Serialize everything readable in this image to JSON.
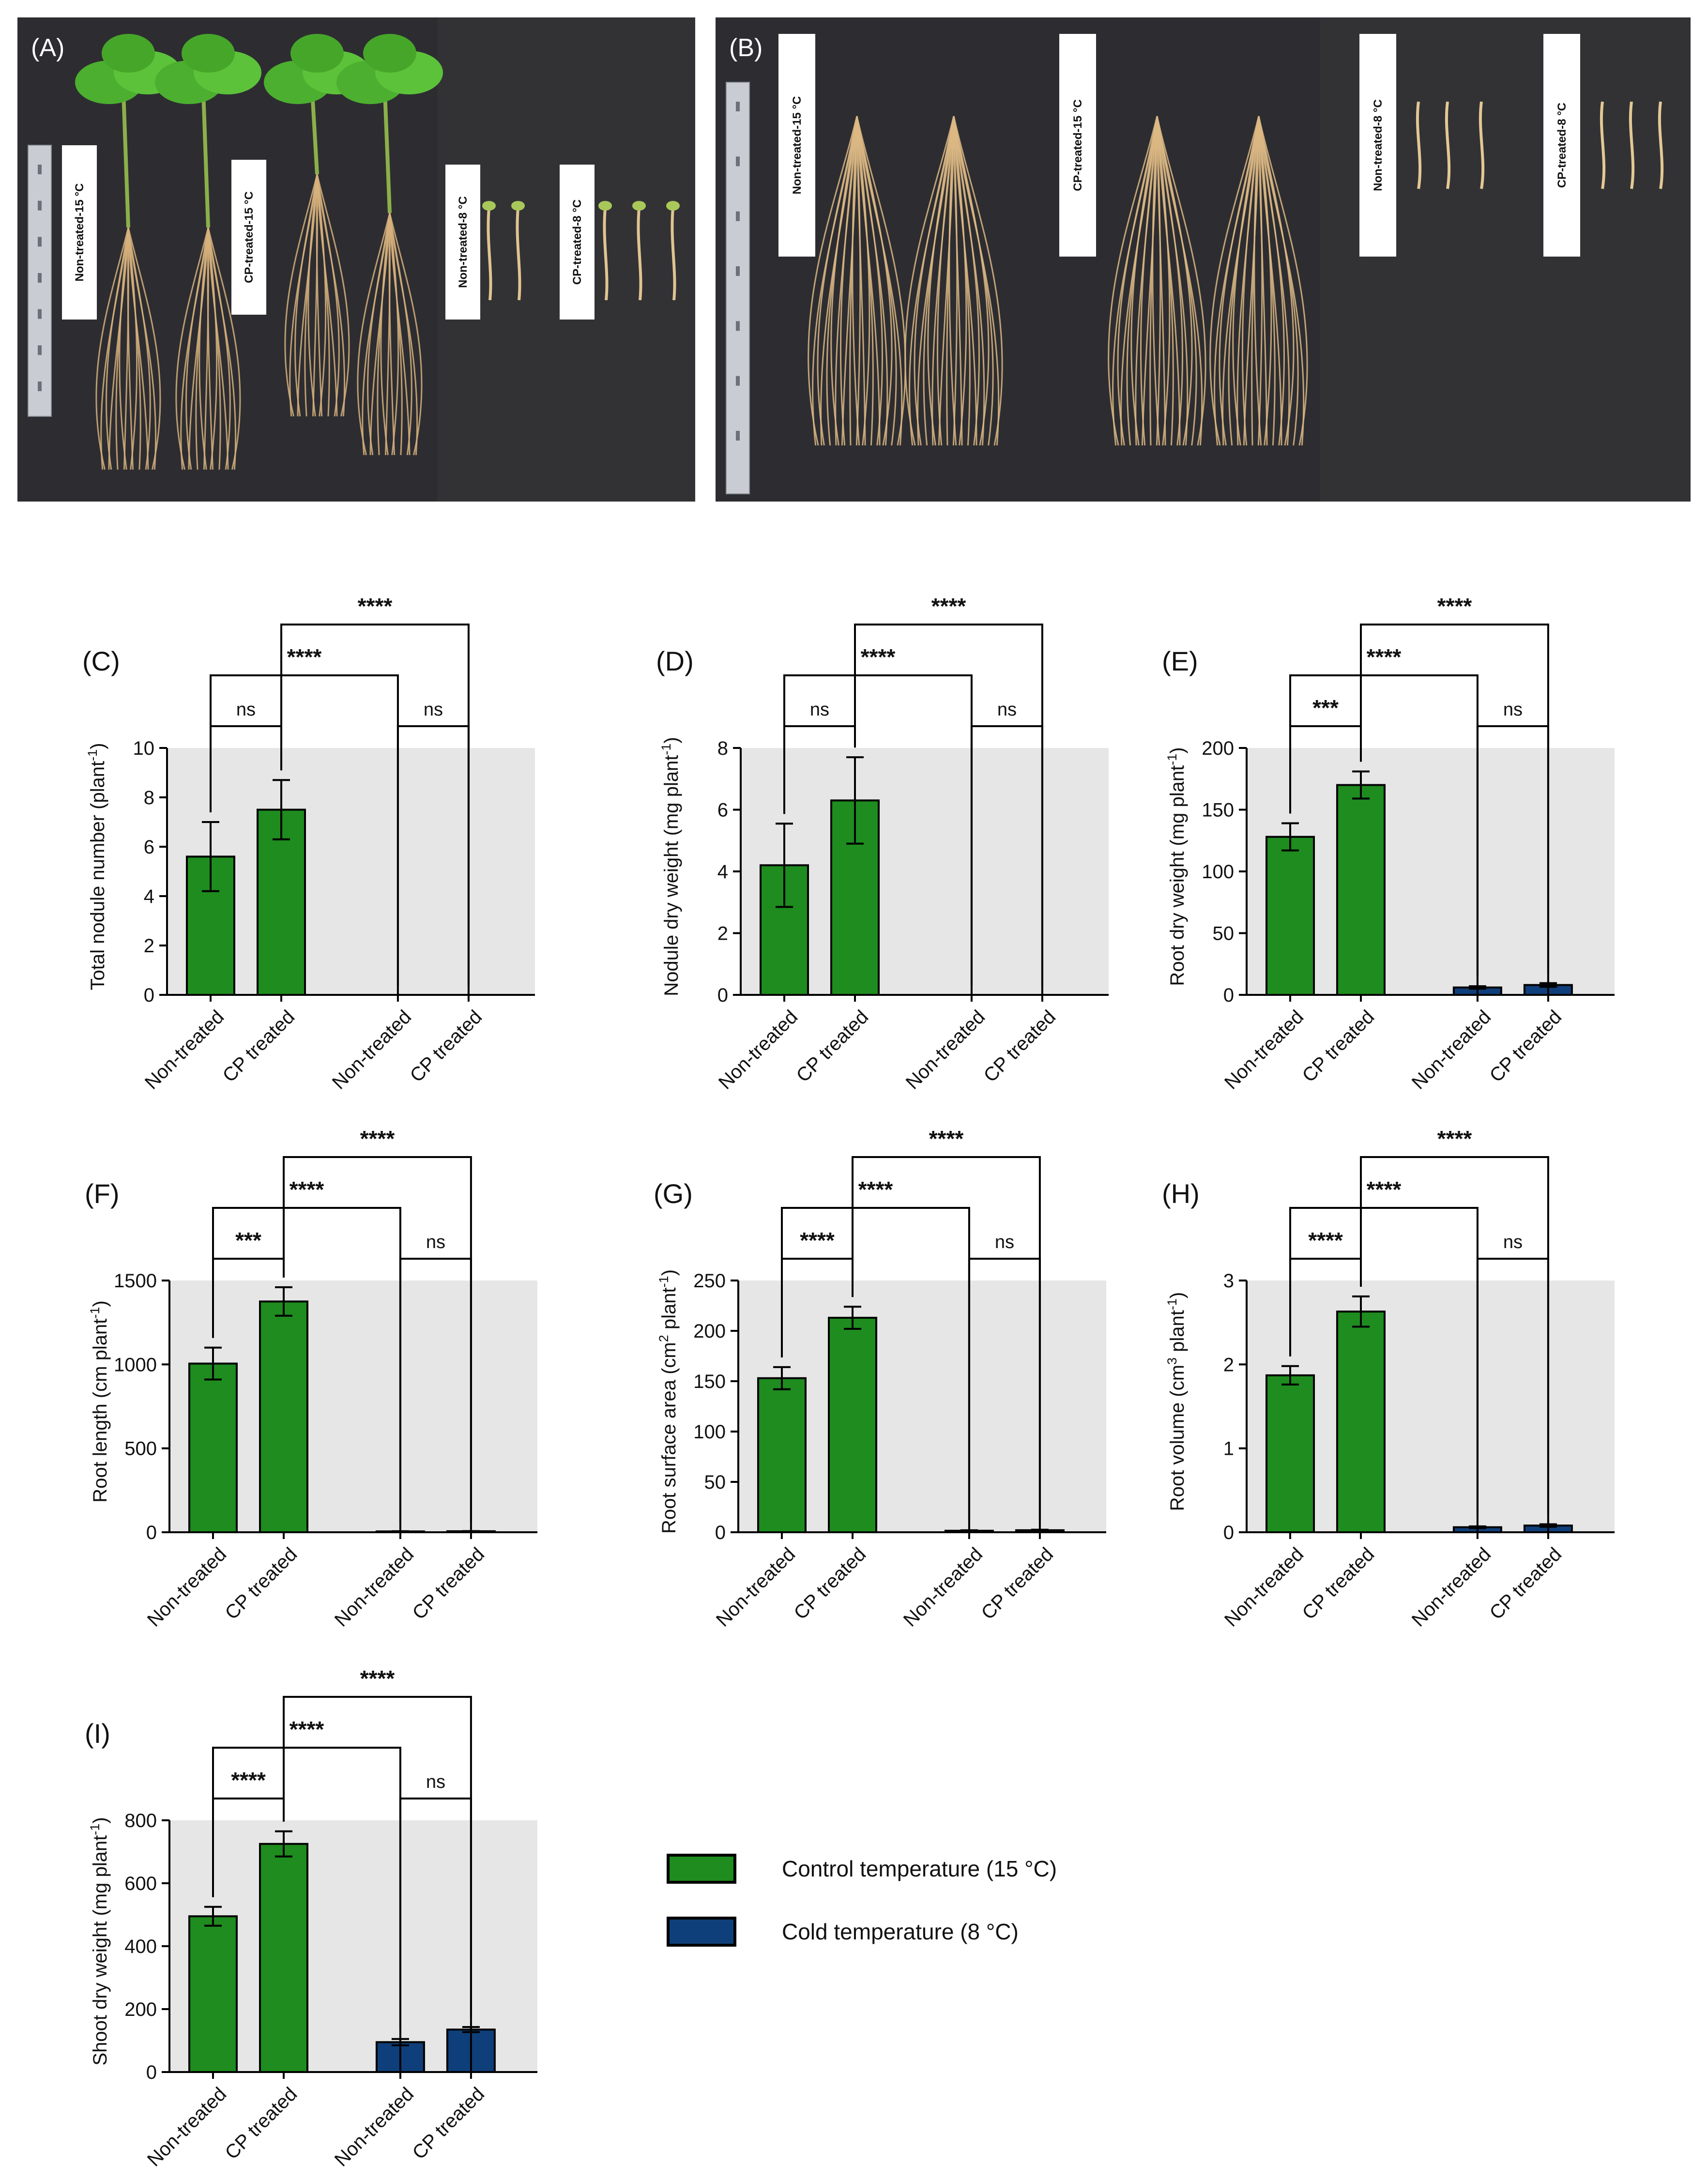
{
  "photos": [
    {
      "panel": "(A)",
      "tags": [
        "Non-treated-15 °C",
        "CP-treated-15 °C",
        "Non-treated-8 °C",
        "CP-treated-8 °C"
      ]
    },
    {
      "panel": "(B)",
      "tags": [
        "Non-treated-15 °C",
        "CP-treated-15 °C",
        "Non-treated-8 °C",
        "CP-treated-8 °C"
      ]
    }
  ],
  "legend": [
    {
      "label": "Control temperature (15 °C)",
      "color": "#1e8c1e"
    },
    {
      "label": "Cold temperature (8 °C)",
      "color": "#0f3f7a"
    }
  ],
  "colors": {
    "control": "#1e8c1e",
    "cold": "#0f3f7a",
    "plot_bg": "#e6e6e6"
  },
  "chart_data": [
    {
      "panel": "(C)",
      "type": "bar",
      "ylabel": "Total nodule number (plant",
      "ylabel_sup": "-1",
      "ylabel_end": ")",
      "categories": [
        "Non-treated",
        "CP treated",
        "Non-treated",
        "CP treated"
      ],
      "series": [
        {
          "name": "Control temperature (15 °C)",
          "values": [
            5.6,
            7.5,
            null,
            null
          ],
          "errors": [
            1.4,
            1.2,
            null,
            null
          ]
        },
        {
          "name": "Cold temperature (8 °C)",
          "values": [
            null,
            null,
            0,
            0
          ],
          "errors": [
            null,
            null,
            0,
            0
          ]
        }
      ],
      "ylim": [
        0,
        10
      ],
      "yticks": [
        "0",
        "2",
        "4",
        "6",
        "8",
        "10"
      ],
      "significance": [
        {
          "from": 0,
          "to": 1,
          "label": "ns"
        },
        {
          "from": 2,
          "to": 3,
          "label": "ns"
        },
        {
          "from": 0,
          "to": 2,
          "label": "****"
        },
        {
          "from": 1,
          "to": 3,
          "label": "****"
        }
      ]
    },
    {
      "panel": "(D)",
      "type": "bar",
      "ylabel": "Nodule dry weight (mg plant",
      "ylabel_sup": "-1",
      "ylabel_end": ")",
      "categories": [
        "Non-treated",
        "CP treated",
        "Non-treated",
        "CP treated"
      ],
      "series": [
        {
          "name": "Control temperature (15 °C)",
          "values": [
            4.2,
            6.3,
            null,
            null
          ],
          "errors": [
            1.35,
            1.4,
            null,
            null
          ]
        },
        {
          "name": "Cold temperature (8 °C)",
          "values": [
            null,
            null,
            0,
            0
          ],
          "errors": [
            null,
            null,
            0,
            0
          ]
        }
      ],
      "ylim": [
        0,
        8
      ],
      "yticks": [
        "0",
        "2",
        "4",
        "6",
        "8"
      ],
      "significance": [
        {
          "from": 0,
          "to": 1,
          "label": "ns"
        },
        {
          "from": 2,
          "to": 3,
          "label": "ns"
        },
        {
          "from": 0,
          "to": 2,
          "label": "****"
        },
        {
          "from": 1,
          "to": 3,
          "label": "****"
        }
      ]
    },
    {
      "panel": "(E)",
      "type": "bar",
      "ylabel": "Root dry weight (mg plant",
      "ylabel_sup": "-1",
      "ylabel_end": ")",
      "categories": [
        "Non-treated",
        "CP treated",
        "Non-treated",
        "CP treated"
      ],
      "series": [
        {
          "name": "Control temperature (15 °C)",
          "values": [
            128,
            170,
            null,
            null
          ],
          "errors": [
            11,
            11,
            null,
            null
          ]
        },
        {
          "name": "Cold temperature (8 °C)",
          "values": [
            null,
            null,
            6,
            8
          ],
          "errors": [
            null,
            null,
            1,
            1.5
          ]
        }
      ],
      "ylim": [
        0,
        200
      ],
      "yticks": [
        "0",
        "50",
        "100",
        "150",
        "200"
      ],
      "significance": [
        {
          "from": 0,
          "to": 1,
          "label": "***"
        },
        {
          "from": 2,
          "to": 3,
          "label": "ns"
        },
        {
          "from": 0,
          "to": 2,
          "label": "****"
        },
        {
          "from": 1,
          "to": 3,
          "label": "****"
        }
      ]
    },
    {
      "panel": "(F)",
      "type": "bar",
      "ylabel": "Root length (cm plant",
      "ylabel_sup": "-1",
      "ylabel_end": ")",
      "categories": [
        "Non-treated",
        "CP treated",
        "Non-treated",
        "CP treated"
      ],
      "series": [
        {
          "name": "Control temperature (15 °C)",
          "values": [
            1005,
            1375,
            null,
            null
          ],
          "errors": [
            95,
            85,
            null,
            null
          ]
        },
        {
          "name": "Cold temperature (8 °C)",
          "values": [
            null,
            null,
            5,
            6
          ],
          "errors": [
            null,
            null,
            1,
            1
          ]
        }
      ],
      "ylim": [
        0,
        1500
      ],
      "yticks": [
        "0",
        "500",
        "1000",
        "1500"
      ],
      "significance": [
        {
          "from": 0,
          "to": 1,
          "label": "***"
        },
        {
          "from": 2,
          "to": 3,
          "label": "ns"
        },
        {
          "from": 0,
          "to": 2,
          "label": "****"
        },
        {
          "from": 1,
          "to": 3,
          "label": "****"
        }
      ]
    },
    {
      "panel": "(G)",
      "type": "bar",
      "ylabel": "Root surface area (cm",
      "ylabel_sup": "2",
      "ylabel_mid": " plant",
      "ylabel_sup2": "-1",
      "ylabel_end": ")",
      "categories": [
        "Non-treated",
        "CP treated",
        "Non-treated",
        "CP treated"
      ],
      "series": [
        {
          "name": "Control temperature (15 °C)",
          "values": [
            153,
            213,
            null,
            null
          ],
          "errors": [
            11,
            11,
            null,
            null
          ]
        },
        {
          "name": "Cold temperature (8 °C)",
          "values": [
            null,
            null,
            1.5,
            2
          ],
          "errors": [
            null,
            null,
            0.5,
            0.5
          ]
        }
      ],
      "ylim": [
        0,
        250
      ],
      "yticks": [
        "0",
        "50",
        "100",
        "150",
        "200",
        "250"
      ],
      "significance": [
        {
          "from": 0,
          "to": 1,
          "label": "****"
        },
        {
          "from": 2,
          "to": 3,
          "label": "ns"
        },
        {
          "from": 0,
          "to": 2,
          "label": "****"
        },
        {
          "from": 1,
          "to": 3,
          "label": "****"
        }
      ]
    },
    {
      "panel": "(H)",
      "type": "bar",
      "ylabel": "Root volume (cm",
      "ylabel_sup": "3",
      "ylabel_mid": " plant",
      "ylabel_sup2": "-1",
      "ylabel_end": ")",
      "categories": [
        "Non-treated",
        "CP treated",
        "Non-treated",
        "CP treated"
      ],
      "series": [
        {
          "name": "Control temperature (15 °C)",
          "values": [
            1.87,
            2.63,
            null,
            null
          ],
          "errors": [
            0.11,
            0.18,
            null,
            null
          ]
        },
        {
          "name": "Cold temperature (8 °C)",
          "values": [
            null,
            null,
            0.06,
            0.08
          ],
          "errors": [
            null,
            null,
            0.01,
            0.015
          ]
        }
      ],
      "ylim": [
        0,
        3
      ],
      "yticks": [
        "0",
        "1",
        "2",
        "3"
      ],
      "significance": [
        {
          "from": 0,
          "to": 1,
          "label": "****"
        },
        {
          "from": 2,
          "to": 3,
          "label": "ns"
        },
        {
          "from": 0,
          "to": 2,
          "label": "****"
        },
        {
          "from": 1,
          "to": 3,
          "label": "****"
        }
      ]
    },
    {
      "panel": "(I)",
      "type": "bar",
      "ylabel": "Shoot dry weight (mg plant",
      "ylabel_sup": "-1",
      "ylabel_end": ")",
      "categories": [
        "Non-treated",
        "CP treated",
        "Non-treated",
        "CP treated"
      ],
      "series": [
        {
          "name": "Control temperature (15 °C)",
          "values": [
            495,
            725,
            null,
            null
          ],
          "errors": [
            30,
            40,
            null,
            null
          ]
        },
        {
          "name": "Cold temperature (8 °C)",
          "values": [
            null,
            null,
            95,
            135
          ],
          "errors": [
            null,
            null,
            10,
            8
          ]
        }
      ],
      "ylim": [
        0,
        800
      ],
      "yticks": [
        "0",
        "200",
        "400",
        "600",
        "800"
      ],
      "significance": [
        {
          "from": 0,
          "to": 1,
          "label": "****"
        },
        {
          "from": 2,
          "to": 3,
          "label": "ns"
        },
        {
          "from": 0,
          "to": 2,
          "label": "****"
        },
        {
          "from": 1,
          "to": 3,
          "label": "****"
        }
      ]
    }
  ]
}
